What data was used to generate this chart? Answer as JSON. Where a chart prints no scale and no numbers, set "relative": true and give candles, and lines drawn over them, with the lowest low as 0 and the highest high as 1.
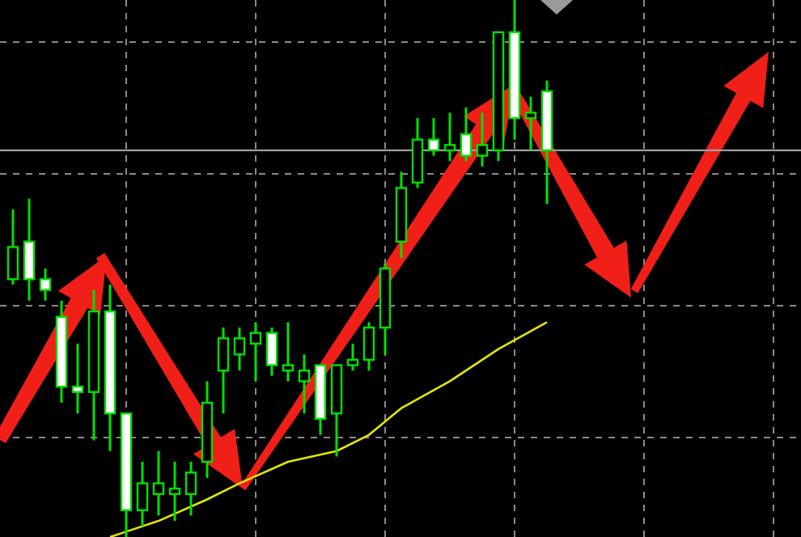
{
  "chart_data": {
    "type": "candlestick",
    "relative": true,
    "grid": true,
    "categories": [
      null,
      null,
      null,
      null,
      null,
      null,
      null,
      null,
      null,
      null,
      null,
      null,
      null,
      null,
      null,
      null,
      null,
      null,
      null,
      null,
      null,
      null,
      null,
      null,
      null,
      null,
      null,
      null,
      null,
      null,
      null,
      null,
      null,
      null
    ],
    "ohlc": [
      [
        0.48,
        0.61,
        0.47,
        0.54
      ],
      [
        0.55,
        0.63,
        0.44,
        0.48
      ],
      [
        0.48,
        0.5,
        0.44,
        0.46
      ],
      [
        0.41,
        0.44,
        0.25,
        0.28
      ],
      [
        0.28,
        0.36,
        0.23,
        0.27
      ],
      [
        0.27,
        0.46,
        0.18,
        0.42
      ],
      [
        0.42,
        0.47,
        0.16,
        0.23
      ],
      [
        0.23,
        0.23,
        0,
        0.05
      ],
      [
        0.05,
        0.14,
        0.02,
        0.1
      ],
      [
        0.08,
        0.16,
        0.04,
        0.1
      ],
      [
        0.08,
        0.14,
        0.03,
        0.09
      ],
      [
        0.08,
        0.14,
        0.04,
        0.12
      ],
      [
        0.14,
        0.29,
        0.11,
        0.25
      ],
      [
        0.31,
        0.39,
        0.23,
        0.37
      ],
      [
        0.34,
        0.39,
        0.31,
        0.37
      ],
      [
        0.36,
        0.4,
        0.29,
        0.38
      ],
      [
        0.38,
        0.39,
        0.3,
        0.32
      ],
      [
        0.31,
        0.4,
        0.29,
        0.32
      ],
      [
        0.29,
        0.34,
        0.23,
        0.31
      ],
      [
        0.32,
        0.32,
        0.19,
        0.22
      ],
      [
        0.23,
        0.32,
        0.15,
        0.32
      ],
      [
        0.32,
        0.36,
        0.31,
        0.33
      ],
      [
        0.33,
        0.4,
        0.31,
        0.39
      ],
      [
        0.39,
        0.51,
        0.34,
        0.5
      ],
      [
        0.55,
        0.68,
        0.52,
        0.65
      ],
      [
        0.66,
        0.78,
        0.65,
        0.74
      ],
      [
        0.74,
        0.78,
        0.71,
        0.72
      ],
      [
        0.72,
        0.79,
        0.7,
        0.73
      ],
      [
        0.75,
        0.8,
        0.7,
        0.71
      ],
      [
        0.71,
        0.79,
        0.69,
        0.73
      ],
      [
        0.72,
        0.94,
        0.7,
        0.94
      ],
      [
        0.94,
        1,
        0.74,
        0.78
      ],
      [
        0.78,
        0.82,
        0.72,
        0.79
      ],
      [
        0.83,
        0.85,
        0.62,
        0.72
      ]
    ],
    "series": [
      {
        "type": "line",
        "color": "#e6e600",
        "values": [
          null,
          null,
          null,
          null,
          null,
          null,
          0,
          0.01,
          null,
          0.03,
          null,
          null,
          0.07,
          null,
          0.1,
          null,
          null,
          0.14,
          null,
          null,
          0.16,
          null,
          0.19,
          null,
          0.24,
          null,
          null,
          0.29,
          null,
          null,
          0.35,
          null,
          null,
          0.4
        ]
      }
    ],
    "ref_lines": [
      {
        "axis": "y",
        "value": 0.72,
        "color": "#a0a0a0"
      }
    ]
  }
}
